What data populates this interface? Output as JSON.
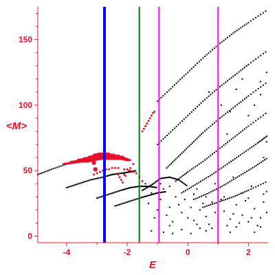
{
  "chart_data": {
    "type": "scatter",
    "title": "",
    "xlabel": "E",
    "ylabel": "<M>",
    "xlim": [
      -4.95,
      2.65
    ],
    "ylim": [
      -5,
      175
    ],
    "x_ticks": [
      "-4",
      "-2",
      "0",
      "2"
    ],
    "x_tick_values": [
      -4,
      -2,
      0,
      2
    ],
    "y_ticks": [
      "0",
      "50",
      "100",
      "150"
    ],
    "y_tick_values": [
      0,
      50,
      100,
      150
    ],
    "grid": false,
    "legend": "none",
    "colors": {
      "axis": "#e8102a",
      "black_points": "#000000",
      "red_points": "#e8102a",
      "blue_line": "#0000ff",
      "green_line": "#008000",
      "magenta_line": "#ff00ff"
    },
    "vertical_lines": [
      {
        "x": -2.75,
        "color": "#0000ff"
      },
      {
        "x": -1.6,
        "color": "#008000"
      },
      {
        "x": -0.95,
        "color": "#ff00ff"
      },
      {
        "x": 1.0,
        "color": "#ff00ff"
      }
    ],
    "black_point_curves": [
      {
        "x": [
          -4.95,
          -4.5,
          -4.0,
          -3.6,
          -3.3,
          -3.0,
          -2.75,
          -2.5,
          -2.2,
          -2.0
        ],
        "y": [
          47,
          51,
          55,
          58,
          60,
          62,
          63,
          62,
          60,
          58
        ]
      },
      {
        "x": [
          -4.0,
          -3.6,
          -3.2,
          -2.8,
          -2.5,
          -2.2,
          -1.9,
          -1.7
        ],
        "y": [
          37,
          40,
          43,
          45,
          47,
          48,
          49,
          50
        ]
      },
      {
        "x": [
          -3.0,
          -2.6,
          -2.2,
          -1.9,
          -1.6,
          -1.3,
          -1.0
        ],
        "y": [
          29,
          32,
          35,
          37,
          38,
          38,
          37
        ]
      },
      {
        "x": [
          -2.4,
          -2.0,
          -1.6,
          -1.3,
          -1.0,
          -0.7
        ],
        "y": [
          23,
          26,
          29,
          31,
          33,
          34
        ]
      },
      {
        "x": [
          -1.0,
          -0.5,
          0.0,
          0.5,
          1.0,
          1.5,
          2.0,
          2.65
        ],
        "y": [
          103,
          114,
          125,
          136,
          146,
          155,
          163,
          173
        ]
      },
      {
        "x": [
          -1.0,
          -0.5,
          0.0,
          0.5,
          1.0,
          1.5,
          2.0,
          2.65
        ],
        "y": [
          70,
          81,
          92,
          103,
          113,
          122,
          131,
          142
        ]
      },
      {
        "x": [
          -0.7,
          -0.3,
          0.1,
          0.5,
          1.0,
          1.5,
          2.0,
          2.65
        ],
        "y": [
          52,
          61,
          70,
          79,
          89,
          98,
          107,
          118
        ]
      },
      {
        "x": [
          -0.4,
          0.0,
          0.5,
          1.0,
          1.5,
          2.0,
          2.65
        ],
        "y": [
          42,
          49,
          57,
          66,
          75,
          84,
          95
        ]
      },
      {
        "x": [
          -0.2,
          0.3,
          0.8,
          1.3,
          1.8,
          2.3,
          2.65
        ],
        "y": [
          33,
          40,
          47,
          55,
          63,
          71,
          77
        ]
      },
      {
        "x": [
          0.2,
          0.7,
          1.2,
          1.7,
          2.2,
          2.65
        ],
        "y": [
          28,
          33,
          39,
          46,
          53,
          60
        ]
      },
      {
        "x": [
          0.5,
          1.0,
          1.5,
          2.0,
          2.65
        ],
        "y": [
          22,
          26,
          30,
          35,
          42
        ]
      },
      {
        "x": [
          -1.5,
          -1.2,
          -0.9,
          -0.6,
          -0.3,
          0.0
        ],
        "y": [
          35,
          39,
          44,
          45,
          43,
          38
        ]
      }
    ],
    "black_point_cloud": [
      [
        -1.4,
        40
      ],
      [
        -1.2,
        33
      ],
      [
        -0.9,
        28
      ],
      [
        -0.6,
        22
      ],
      [
        -0.4,
        30
      ],
      [
        -0.2,
        18
      ],
      [
        0.0,
        14
      ],
      [
        0.2,
        12
      ],
      [
        0.4,
        20
      ],
      [
        0.6,
        15
      ],
      [
        0.8,
        26
      ],
      [
        1.0,
        10
      ],
      [
        1.2,
        19
      ],
      [
        1.4,
        13
      ],
      [
        1.6,
        24
      ],
      [
        1.8,
        16
      ],
      [
        2.0,
        11
      ],
      [
        2.2,
        21
      ],
      [
        2.4,
        14
      ],
      [
        2.6,
        18
      ],
      [
        -1.0,
        20
      ],
      [
        -0.7,
        16
      ],
      [
        -0.5,
        11
      ],
      [
        -0.3,
        24
      ],
      [
        0.1,
        22
      ],
      [
        0.3,
        9
      ],
      [
        0.5,
        25
      ],
      [
        0.7,
        9
      ],
      [
        0.9,
        18
      ],
      [
        1.1,
        28
      ],
      [
        1.3,
        8
      ],
      [
        1.5,
        17
      ],
      [
        1.7,
        10
      ],
      [
        1.9,
        27
      ],
      [
        2.1,
        14
      ],
      [
        2.3,
        8
      ],
      [
        2.5,
        26
      ],
      [
        -1.3,
        25
      ],
      [
        -1.1,
        14
      ],
      [
        -0.8,
        36
      ],
      [
        -0.6,
        8
      ],
      [
        -0.1,
        28
      ],
      [
        0.2,
        32
      ],
      [
        0.4,
        6
      ],
      [
        0.6,
        30
      ],
      [
        0.8,
        6
      ],
      [
        1.2,
        30
      ],
      [
        1.6,
        7
      ],
      [
        2.0,
        29
      ],
      [
        2.4,
        7
      ],
      [
        -0.2,
        5
      ],
      [
        0.6,
        4
      ],
      [
        1.4,
        3
      ],
      [
        2.2,
        3
      ],
      [
        -1.2,
        4
      ],
      [
        -0.8,
        3
      ],
      [
        -0.5,
        2
      ],
      [
        0.1,
        2
      ],
      [
        0.3,
        36
      ],
      [
        1.0,
        35
      ],
      [
        1.8,
        33
      ],
      [
        2.6,
        34
      ],
      [
        -0.9,
        40
      ],
      [
        -0.6,
        38
      ],
      [
        2.5,
        32
      ],
      [
        2.1,
        38
      ],
      [
        1.5,
        45
      ],
      [
        0.9,
        40
      ],
      [
        2.4,
        108
      ],
      [
        2.4,
        118
      ],
      [
        2.6,
        125
      ],
      [
        1.8,
        120
      ],
      [
        1.6,
        112
      ],
      [
        2.2,
        100
      ],
      [
        1.1,
        100
      ],
      [
        1.4,
        95
      ],
      [
        0.7,
        110
      ],
      [
        2.5,
        60
      ],
      [
        2.0,
        92
      ],
      [
        1.3,
        78
      ],
      [
        2.6,
        72
      ]
    ],
    "red_arc": {
      "x": [
        -4.1,
        -3.8,
        -3.5,
        -3.3,
        -3.1,
        -2.9,
        -2.75,
        -2.6,
        -2.4,
        -2.2,
        -2.0,
        -1.9
      ],
      "y": [
        55,
        57,
        59,
        60,
        62,
        63,
        63,
        63,
        62,
        61,
        59,
        58
      ],
      "thickness": [
        0,
        1,
        2,
        3,
        4,
        4,
        4,
        4,
        3,
        2,
        1,
        0
      ]
    },
    "red_points": [
      [
        -3.1,
        47
      ],
      [
        -3.0,
        48
      ],
      [
        -2.9,
        49
      ],
      [
        -2.8,
        50
      ],
      [
        -2.7,
        51
      ],
      [
        -2.6,
        51
      ],
      [
        -2.5,
        52
      ],
      [
        -2.4,
        52
      ],
      [
        -2.3,
        52
      ],
      [
        -2.1,
        51
      ],
      [
        -2.0,
        51
      ],
      [
        -1.9,
        50
      ],
      [
        -1.8,
        49
      ],
      [
        -1.7,
        48
      ],
      [
        -1.6,
        45
      ],
      [
        -1.5,
        42
      ],
      [
        -2.3,
        47
      ],
      [
        -2.25,
        45
      ],
      [
        -2.2,
        43
      ],
      [
        -2.15,
        41
      ],
      [
        -2.1,
        47
      ],
      [
        -2.05,
        46
      ],
      [
        -1.95,
        50
      ],
      [
        -1.9,
        52
      ],
      [
        -1.8,
        55
      ],
      [
        -1.5,
        80
      ],
      [
        -1.45,
        82
      ],
      [
        -1.4,
        84
      ],
      [
        -1.35,
        86
      ],
      [
        -1.3,
        88
      ],
      [
        -1.25,
        90
      ],
      [
        -1.2,
        92
      ],
      [
        -1.15,
        94
      ],
      [
        -1.1,
        95
      ]
    ],
    "red_big_points": [
      [
        -3.05,
        51
      ],
      [
        -3.1,
        56
      ]
    ]
  }
}
